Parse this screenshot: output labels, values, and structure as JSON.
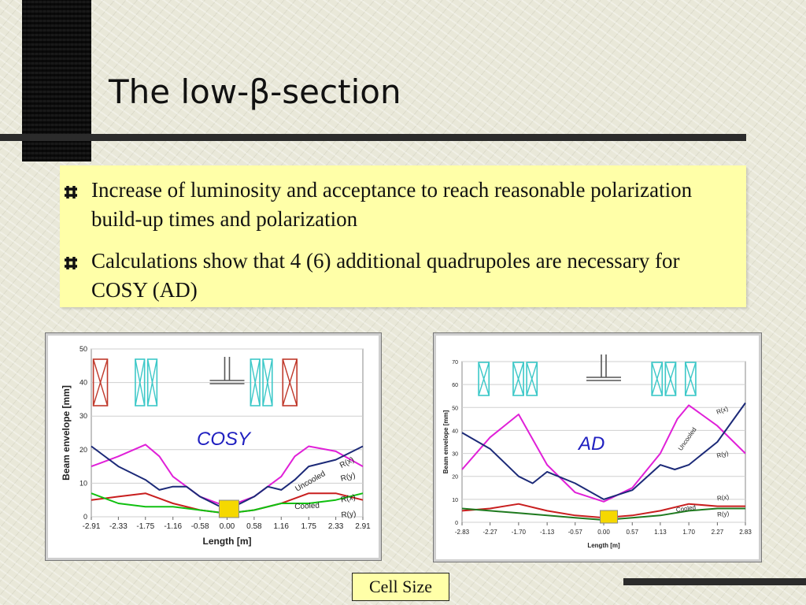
{
  "slide": {
    "title": "The low-β-section",
    "bullets": [
      "Increase of luminosity and acceptance to reach reasonable polarization build-up times and polarization",
      "Calculations show that 4 (6) additional quadrupoles are necessary for COSY (AD)"
    ],
    "cell_size_label": "Cell Size"
  },
  "colors": {
    "quad_red": "#c0392b",
    "quad_cyan": "#3cc8c8",
    "pink": "#e020d8",
    "navy": "#1c2a78",
    "red": "#c81e1e",
    "green": "#10c010",
    "darkgreen": "#1f7a1f",
    "annotation": "#2020c0",
    "cell": "#f5d800"
  },
  "chart_data": [
    {
      "type": "line",
      "annotation": "COSY",
      "xlabel": "Length [m]",
      "ylabel": "Beam envelope [mm]",
      "ylim": [
        0,
        50
      ],
      "yticks": [
        0,
        10,
        20,
        30,
        40,
        50
      ],
      "xticks": [
        -2.91,
        -2.33,
        -1.75,
        -1.16,
        -0.58,
        0.0,
        0.58,
        1.16,
        1.75,
        2.33,
        2.91
      ],
      "xtick_labels": [
        "-2.91",
        "-2.33",
        "-1.75",
        "-1.16",
        "-0.58",
        "0.00",
        "0.58",
        "1.16",
        "1.75",
        "2.33",
        "2.91"
      ],
      "grid": true,
      "quadrupoles": [
        {
          "from": -2.9,
          "to": -2.53,
          "color": "quad_red",
          "count": 1
        },
        {
          "from": -2.0,
          "to": -1.47,
          "color": "quad_cyan",
          "count": 2
        },
        {
          "from": 0.47,
          "to": 1.0,
          "color": "quad_cyan",
          "count": 2
        },
        {
          "from": 1.16,
          "to": 1.53,
          "color": "quad_red",
          "count": 1
        }
      ],
      "target_x": -0.17,
      "series": [
        {
          "name": "R(x)",
          "group": "Uncooled",
          "color": "pink",
          "x": [
            -2.91,
            -2.33,
            -1.75,
            -1.45,
            -1.16,
            -0.58,
            0.0,
            0.58,
            1.16,
            1.45,
            1.75,
            2.33,
            2.91
          ],
          "y": [
            15,
            18,
            21.5,
            18,
            12,
            6,
            3,
            6,
            12,
            18,
            21,
            19.5,
            15
          ]
        },
        {
          "name": "R(y)",
          "group": "Uncooled",
          "color": "navy",
          "x": [
            -2.91,
            -2.33,
            -1.75,
            -1.45,
            -1.16,
            -0.87,
            -0.58,
            0.0,
            0.58,
            0.87,
            1.16,
            1.45,
            1.75,
            2.33,
            2.91
          ],
          "y": [
            21,
            15,
            11,
            8,
            9,
            9,
            6,
            2,
            6,
            9,
            8,
            11,
            15,
            17,
            21
          ]
        },
        {
          "name": "R(x)",
          "group": "Cooled",
          "color": "red",
          "x": [
            -2.91,
            -2.33,
            -1.75,
            -1.16,
            -0.58,
            0.0,
            0.58,
            1.16,
            1.75,
            2.33,
            2.91
          ],
          "y": [
            5,
            6,
            7,
            4,
            2,
            1,
            2,
            4,
            7,
            7,
            5
          ]
        },
        {
          "name": "R(y)",
          "group": "Cooled",
          "color": "green",
          "x": [
            -2.91,
            -2.33,
            -1.75,
            -1.16,
            -0.58,
            0.0,
            0.58,
            1.16,
            1.75,
            2.33,
            2.91
          ],
          "y": [
            7,
            4,
            3,
            3,
            2,
            1,
            2,
            4,
            4,
            5,
            7
          ]
        }
      ],
      "labels": [
        {
          "text": "Uncooled",
          "x": 1.5,
          "y": 7.5,
          "rotate": -30
        },
        {
          "text": "Cooled",
          "x": 1.45,
          "y": 2.3,
          "rotate": -3
        },
        {
          "text": "R(x)",
          "x": 2.45,
          "y": 14.5,
          "rotate": -28
        },
        {
          "text": "R(y)",
          "x": 2.45,
          "y": 10.6,
          "rotate": -15
        },
        {
          "text": "R(x)",
          "x": 2.45,
          "y": 4.3,
          "rotate": -12
        },
        {
          "text": "R(y)",
          "x": 2.45,
          "y": -0.2,
          "rotate": -5
        }
      ]
    },
    {
      "type": "line",
      "annotation": "AD",
      "xlabel": "Length [m]",
      "ylabel": "Beam envelope [mm]",
      "ylim": [
        0,
        70
      ],
      "yticks": [
        0,
        10,
        20,
        30,
        40,
        50,
        60,
        70
      ],
      "xticks": [
        -2.83,
        -2.27,
        -1.7,
        -1.13,
        -0.57,
        0.0,
        0.57,
        1.13,
        1.7,
        2.27,
        2.83
      ],
      "xtick_labels": [
        "-2.83",
        "-2.27",
        "-1.70",
        "-1.13",
        "-0.57",
        "0.00",
        "0.57",
        "1.13",
        "1.70",
        "2.27",
        "2.83"
      ],
      "grid": true,
      "quadrupoles": [
        {
          "from": -2.53,
          "to": -2.26,
          "color": "quad_cyan",
          "count": 1
        },
        {
          "from": -1.84,
          "to": -1.3,
          "color": "quad_cyan",
          "count": 2
        },
        {
          "from": 0.93,
          "to": 1.47,
          "color": "quad_cyan",
          "count": 2
        },
        {
          "from": 1.6,
          "to": 1.87,
          "color": "quad_cyan",
          "count": 1
        }
      ],
      "target_x": -0.07,
      "series": [
        {
          "name": "R(x)",
          "group": "Uncooled",
          "color": "pink",
          "x": [
            -2.83,
            -2.27,
            -1.7,
            -1.13,
            -0.57,
            0.0,
            0.57,
            1.13,
            1.47,
            1.7,
            2.27,
            2.83
          ],
          "y": [
            23,
            37,
            47,
            25,
            13,
            9,
            15,
            30,
            45,
            51,
            42,
            30
          ]
        },
        {
          "name": "R(y)",
          "group": "Uncooled",
          "color": "navy",
          "x": [
            -2.83,
            -2.27,
            -1.7,
            -1.42,
            -1.13,
            -0.57,
            0.0,
            0.57,
            1.13,
            1.42,
            1.7,
            2.27,
            2.83
          ],
          "y": [
            39,
            32,
            20,
            17,
            22,
            17,
            10,
            14,
            25,
            23,
            25,
            35,
            52
          ]
        },
        {
          "name": "R(x)",
          "group": "Cooled",
          "color": "red",
          "x": [
            -2.83,
            -2.27,
            -1.7,
            -1.13,
            -0.57,
            0.0,
            0.57,
            1.13,
            1.7,
            2.27,
            2.83
          ],
          "y": [
            5,
            6,
            8,
            5,
            3,
            2,
            3,
            5,
            8,
            7,
            7
          ]
        },
        {
          "name": "R(y)",
          "group": "Cooled",
          "color": "darkgreen",
          "x": [
            -2.83,
            -2.27,
            -1.7,
            -1.13,
            -0.57,
            0.0,
            0.57,
            1.13,
            1.7,
            2.27,
            2.83
          ],
          "y": [
            6,
            5,
            4,
            3,
            2,
            1,
            2,
            3,
            5,
            6,
            6
          ]
        }
      ],
      "labels": [
        {
          "text": "Uncooled",
          "x": 1.55,
          "y": 31,
          "rotate": -55
        },
        {
          "text": "Cooled",
          "x": 1.45,
          "y": 4.5,
          "rotate": -8
        },
        {
          "text": "R(x)",
          "x": 2.27,
          "y": 47,
          "rotate": -20
        },
        {
          "text": "R(y)",
          "x": 2.27,
          "y": 28,
          "rotate": -15
        },
        {
          "text": "R(x)",
          "x": 2.27,
          "y": 9.5,
          "rotate": -8
        },
        {
          "text": "R(y)",
          "x": 2.27,
          "y": 2.5,
          "rotate": -5
        }
      ]
    }
  ]
}
